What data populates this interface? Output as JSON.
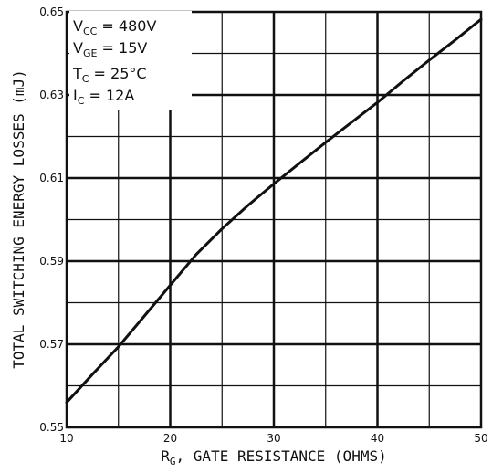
{
  "chart_data": {
    "type": "line",
    "xlabel_main": "R",
    "xlabel_sub": "G",
    "xlabel_rest": ", GATE RESISTANCE (OHMS)",
    "ylabel": "TOTAL SWITCHING ENERGY LOSSES (mJ)",
    "xlim": [
      10,
      50
    ],
    "ylim": [
      0.55,
      0.65
    ],
    "x_ticks": [
      "10",
      "20",
      "30",
      "40",
      "50"
    ],
    "y_ticks": [
      "0.55",
      "0.57",
      "0.59",
      "0.61",
      "0.63",
      "0.65"
    ],
    "grid": true,
    "annotation": [
      {
        "main": "V",
        "sub": "CC",
        "rest": " = 480V"
      },
      {
        "main": "V",
        "sub": "GE",
        "rest": " = 15V"
      },
      {
        "main": "T",
        "sub": "C",
        "rest": " = 25°C"
      },
      {
        "main": "I",
        "sub": "C",
        "rest": " = 12A"
      }
    ],
    "series": [
      {
        "x": [
          10,
          12.5,
          15,
          17.5,
          20,
          22.5,
          25,
          27.5,
          30,
          32.5,
          35,
          37.5,
          40,
          42.5,
          45,
          47.5,
          50
        ],
        "y": [
          0.556,
          0.5628,
          0.5694,
          0.5768,
          0.5842,
          0.5916,
          0.5978,
          0.6034,
          0.6086,
          0.6136,
          0.6186,
          0.6234,
          0.6282,
          0.6334,
          0.6384,
          0.6432,
          0.6482
        ]
      }
    ],
    "line_color": "#111111"
  }
}
